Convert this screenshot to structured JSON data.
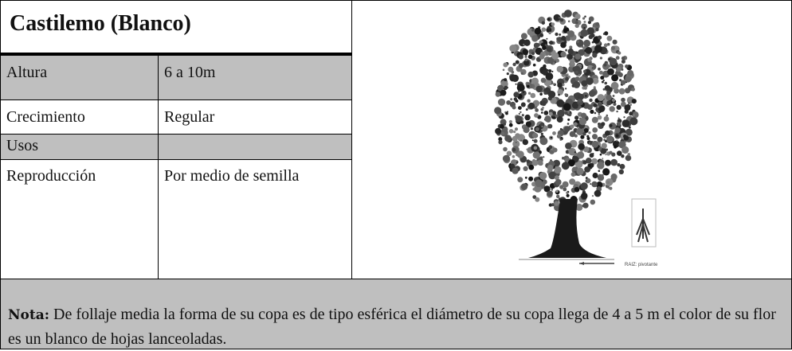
{
  "table": {
    "title": "Castilemo (Blanco)",
    "rows": [
      [
        "Altura",
        "6 a 10m"
      ],
      [
        "Crecimiento",
        "Regular"
      ],
      [
        "Usos"
      ],
      [
        "Reproducción",
        "Por medio de semilla"
      ]
    ]
  },
  "image": {
    "root_label": "RAIZ: pivotante"
  },
  "note": {
    "label": "Nota:",
    "text": "De follaje media la forma de su copa es de tipo esférica el diámetro de su copa llega de 4 a 5 m el color de su flor es un blanco de hojas lanceoladas."
  }
}
